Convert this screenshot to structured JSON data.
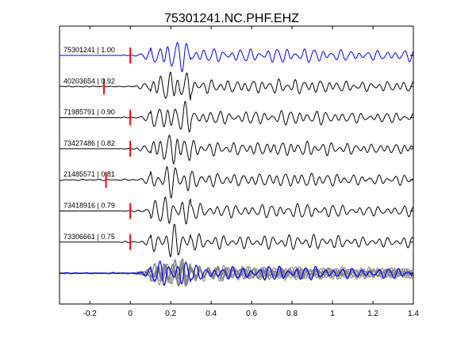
{
  "chart_data": {
    "type": "line",
    "title": "75301241.NC.PHF.EHZ",
    "xlabel": "",
    "ylabel": "",
    "xlim": [
      -0.35,
      1.4
    ],
    "xticks": [
      -0.2,
      0,
      0.2,
      0.4,
      0.6,
      0.8,
      1,
      1.2,
      1.4
    ],
    "xtick_labels": [
      "-0.2",
      "0",
      "0.2",
      "0.4",
      "0.6",
      "0.8",
      "1",
      "1.2",
      "1.4"
    ],
    "grid": false,
    "traces": [
      {
        "label": "75301241 | 1.00",
        "event_id": "75301241",
        "cc": 1.0,
        "pick_time": 0.0,
        "color": "#0000ff"
      },
      {
        "label": "40203654 | 0.92",
        "event_id": "40203654",
        "cc": 0.92,
        "pick_time": -0.13,
        "color": "#000000"
      },
      {
        "label": "71985791 | 0.90",
        "event_id": "71985791",
        "cc": 0.9,
        "pick_time": 0.0,
        "color": "#000000"
      },
      {
        "label": "73427486 | 0.82",
        "event_id": "73427486",
        "cc": 0.82,
        "pick_time": 0.0,
        "color": "#000000"
      },
      {
        "label": "21485571 | 0.81",
        "event_id": "21485571",
        "cc": 0.81,
        "pick_time": -0.12,
        "color": "#000000"
      },
      {
        "label": "73418916 | 0.79",
        "event_id": "73418916",
        "cc": 0.79,
        "pick_time": 0.0,
        "color": "#000000"
      },
      {
        "label": "73306661 | 0.75",
        "event_id": "73306661",
        "cc": 0.75,
        "pick_time": 0.0,
        "color": "#000000"
      }
    ],
    "stack": {
      "overlay_color": "#808080",
      "reference_color": "#0000ff"
    },
    "pick_color": "#ff0000"
  }
}
